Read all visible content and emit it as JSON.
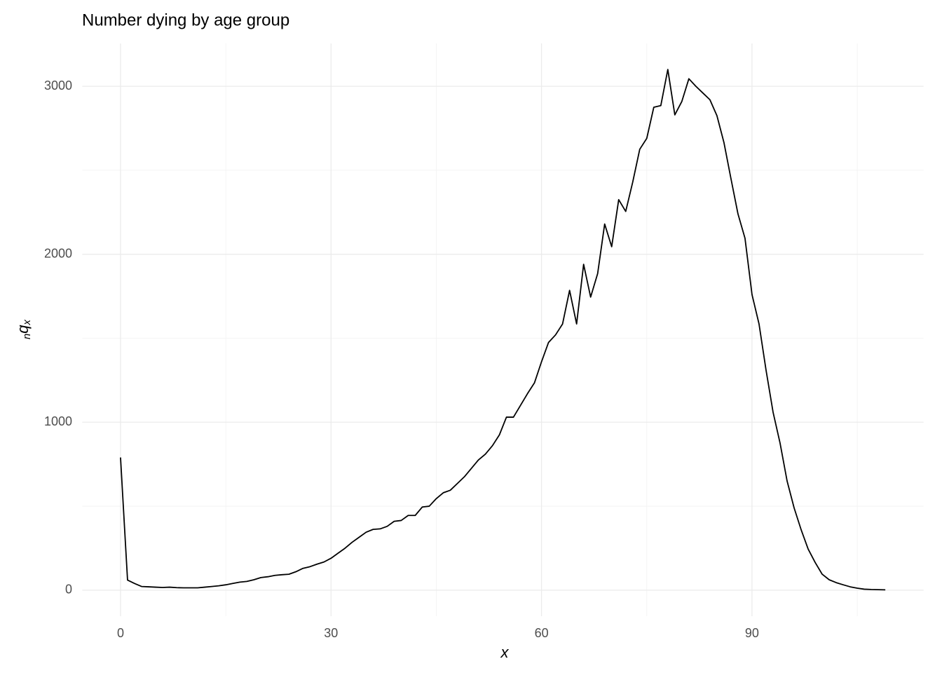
{
  "chart_data": {
    "type": "line",
    "title": "Number dying by age group",
    "xlabel": "x",
    "ylabel": {
      "prefix": "n",
      "main": "q",
      "sub": "x"
    },
    "x": [
      0,
      1,
      2,
      3,
      4,
      5,
      6,
      7,
      8,
      9,
      10,
      11,
      12,
      13,
      14,
      15,
      16,
      17,
      18,
      19,
      20,
      21,
      22,
      23,
      24,
      25,
      26,
      27,
      28,
      29,
      30,
      31,
      32,
      33,
      34,
      35,
      36,
      37,
      38,
      39,
      40,
      41,
      42,
      43,
      44,
      45,
      46,
      47,
      48,
      49,
      50,
      51,
      52,
      53,
      54,
      55,
      56,
      57,
      58,
      59,
      60,
      61,
      62,
      63,
      64,
      65,
      66,
      67,
      68,
      69,
      70,
      71,
      72,
      73,
      74,
      75,
      76,
      77,
      78,
      79,
      80,
      81,
      82,
      83,
      84,
      85,
      86,
      87,
      88,
      89,
      90,
      91,
      92,
      93,
      94,
      95,
      96,
      97,
      98,
      99,
      100,
      101,
      102,
      103,
      104,
      105,
      106,
      107,
      108,
      109
    ],
    "series": [
      {
        "color": "#000000",
        "values": [
          790,
          60,
          40,
          22,
          20,
          18,
          16,
          18,
          15,
          14,
          14,
          14,
          18,
          22,
          26,
          32,
          40,
          48,
          52,
          62,
          75,
          80,
          88,
          92,
          95,
          110,
          130,
          140,
          155,
          168,
          190,
          220,
          250,
          285,
          315,
          345,
          362,
          365,
          380,
          410,
          415,
          445,
          445,
          495,
          500,
          545,
          580,
          595,
          635,
          675,
          725,
          775,
          810,
          860,
          925,
          1030,
          1030,
          1100,
          1170,
          1235,
          1360,
          1475,
          1520,
          1585,
          1785,
          1585,
          1940,
          1745,
          1885,
          2180,
          2045,
          2325,
          2255,
          2430,
          2625,
          2690,
          2875,
          2885,
          3100,
          2830,
          2910,
          3045,
          3000,
          2960,
          2920,
          2825,
          2665,
          2450,
          2240,
          2095,
          1760,
          1585,
          1310,
          1060,
          875,
          650,
          490,
          360,
          245,
          165,
          95,
          62,
          45,
          32,
          20,
          12,
          6,
          4,
          3,
          2
        ]
      }
    ],
    "xlim": [
      -5.45,
      114.45
    ],
    "ylim": [
      -155,
      3255
    ],
    "xticks": [
      0,
      30,
      60,
      90
    ],
    "yticks": [
      0,
      1000,
      2000,
      3000
    ],
    "xminor": [
      15,
      45,
      75,
      105
    ],
    "yminor": [
      500,
      1500,
      2500
    ],
    "grid": true
  }
}
